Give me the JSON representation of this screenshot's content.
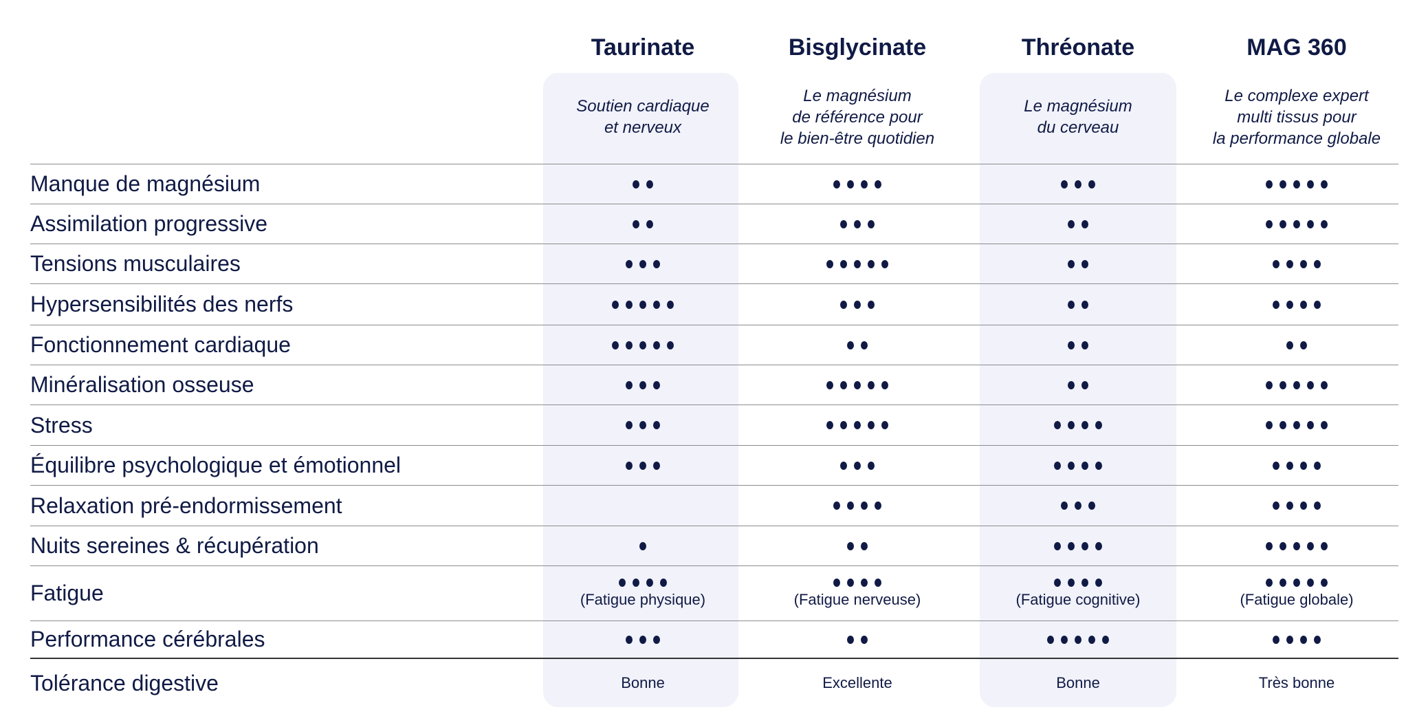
{
  "colors": {
    "text": "#101a45",
    "panel": "#f1f2fa"
  },
  "columns": [
    {
      "title": "Taurinate",
      "subtitle": "Soutien cardiaque\net nerveux"
    },
    {
      "title": "Bisglycinate",
      "subtitle": "Le magnésium\nde référence pour\nle bien-être quotidien"
    },
    {
      "title": "Thréonate",
      "subtitle": "Le magnésium\ndu cerveau"
    },
    {
      "title": "MAG 360",
      "subtitle": "Le complexe expert\nmulti tissus pour\nla performance globale"
    }
  ],
  "rows": [
    {
      "label": "Manque de magnésium",
      "ratings": [
        2,
        4,
        3,
        5
      ]
    },
    {
      "label": "Assimilation progressive",
      "ratings": [
        2,
        3,
        2,
        5
      ]
    },
    {
      "label": "Tensions musculaires",
      "ratings": [
        3,
        5,
        2,
        4
      ]
    },
    {
      "label": "Hypersensibilités des nerfs",
      "ratings": [
        5,
        3,
        2,
        4
      ]
    },
    {
      "label": "Fonctionnement cardiaque",
      "ratings": [
        5,
        2,
        2,
        2
      ]
    },
    {
      "label": "Minéralisation osseuse",
      "ratings": [
        3,
        5,
        2,
        5
      ]
    },
    {
      "label": "Stress",
      "ratings": [
        3,
        5,
        4,
        5
      ]
    },
    {
      "label": "Équilibre psychologique et émotionnel",
      "ratings": [
        3,
        3,
        4,
        4
      ]
    },
    {
      "label": "Relaxation pré-endormissement",
      "ratings": [
        0,
        4,
        3,
        4
      ]
    },
    {
      "label": "Nuits sereines & récupération",
      "ratings": [
        1,
        2,
        4,
        5
      ]
    },
    {
      "label": "Fatigue",
      "ratings": [
        4,
        4,
        4,
        5
      ],
      "notes": [
        "(Fatigue physique)",
        "(Fatigue nerveuse)",
        "(Fatigue cognitive)",
        "(Fatigue globale)"
      ]
    },
    {
      "label": "Performance cérébrales",
      "ratings": [
        3,
        2,
        5,
        4
      ]
    },
    {
      "label": "Tolérance digestive",
      "values": [
        "Bonne",
        "Excellente",
        "Bonne",
        "Très bonne"
      ]
    }
  ]
}
